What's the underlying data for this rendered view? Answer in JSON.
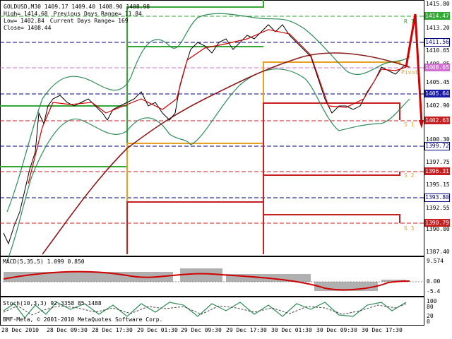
{
  "header": {
    "line1": "GOLDUSD,M30  1409.17 1409.40 1408.90 1408.98",
    "high": "High= 1414.68",
    "prev_range": "Previous Days Range= 11.84",
    "low": "Low= 1402.84",
    "curr_range": "Current Days Range= 169",
    "close": "Close= 1408.44"
  },
  "price_axis": {
    "ticks": [
      "1415.80",
      "1413.20",
      "1410.65",
      "1408.05",
      "1405.45",
      "1402.90",
      "1400.30",
      "1397.75",
      "1395.15",
      "1392.55",
      "1390.00",
      "1387.40"
    ],
    "marker_labels": [
      {
        "text": "1414.47",
        "bg": "#32a832",
        "fg": "#ffffff"
      },
      {
        "text": "1411.56",
        "bg": "#ffffff",
        "fg": "#000080",
        "border": "#000080"
      },
      {
        "text": "1408.65",
        "bg": "#d070d0",
        "fg": "#ffffff"
      },
      {
        "text": "1405.64",
        "bg": "#1a1aa8",
        "fg": "#ffffff"
      },
      {
        "text": "1402.63",
        "bg": "#c82020",
        "fg": "#ffffff"
      },
      {
        "text": "1399.72",
        "bg": "#ffffff",
        "fg": "#000080",
        "border": "#000080"
      },
      {
        "text": "1396.31",
        "bg": "#c82020",
        "fg": "#ffffff"
      },
      {
        "text": "1393.80",
        "bg": "#ffffff",
        "fg": "#000080",
        "border": "#000080"
      },
      {
        "text": "1390.79",
        "bg": "#c82020",
        "fg": "#ffffff"
      }
    ]
  },
  "pivot_labels": {
    "r1": "R 1",
    "pivot": "Pivot",
    "s1": "S 1",
    "s2": "S 2",
    "s3": "S 3"
  },
  "macd": {
    "label": "MACD(5,35,5) 1.099 0.850",
    "ticks": [
      "9.574",
      "0.00",
      "-5.4"
    ]
  },
  "stoch": {
    "label": "Stoch(10,3,3) 92.3358 85.1488",
    "ticks": [
      "100",
      "80",
      "20",
      "0"
    ]
  },
  "time_axis": [
    "28 Dec 2010",
    "28 Dec 09:30",
    "28 Dec 17:30",
    "29 Dec 01:30",
    "29 Dec 09:30",
    "29 Dec 17:30",
    "30 Dec 01:30",
    "30 Dec 09:30",
    "30 Dec 17:30"
  ],
  "copyright": "BMF-Meta, © 2001-2010 MetaQuotes Software Corp.",
  "colors": {
    "candle": "#000000",
    "green": "#32a832",
    "bollinger": "#2e8b57",
    "ma_brown": "#8b1a1a",
    "red": "#d00000",
    "orange": "#e8a020",
    "blue_dash": "#000080",
    "macd_hist": "#b0b0b0"
  }
}
